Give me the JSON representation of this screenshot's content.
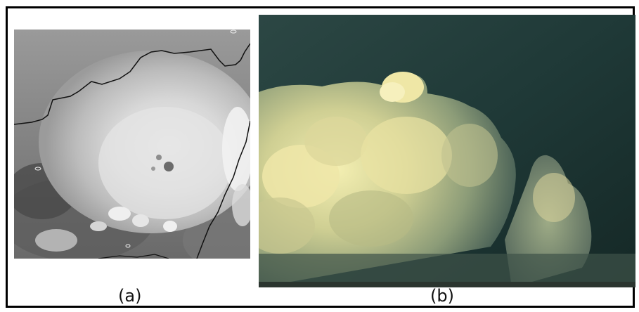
{
  "figure": {
    "panels": [
      {
        "caption": "(a)",
        "kind": "satellite-image"
      },
      {
        "caption": "(b)",
        "kind": "photograph"
      }
    ]
  },
  "colors": {
    "border": "#000000",
    "sky_dark": "#1d3a38",
    "cloud_highlight": "#f3eeb0",
    "satellite_gray": "#8a8a8a"
  }
}
